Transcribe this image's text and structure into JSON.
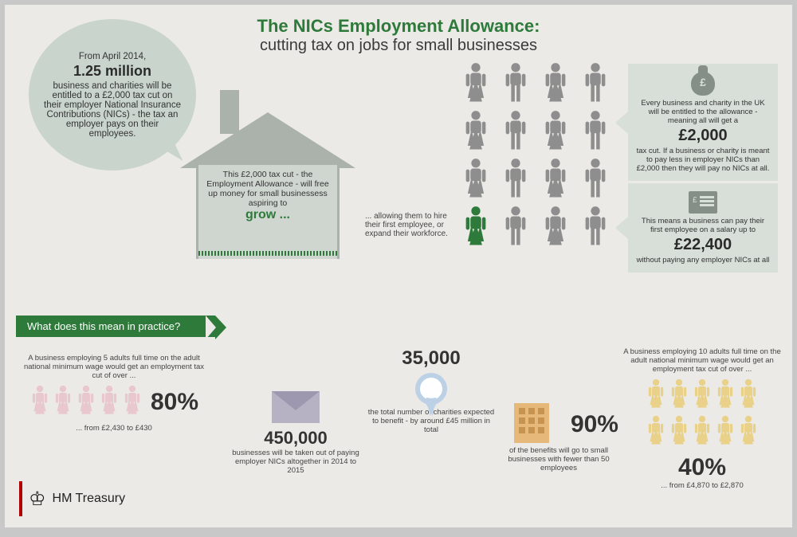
{
  "title": {
    "line1": "The NICs Employment Allowance:",
    "line2": "cutting tax on jobs for small businesses"
  },
  "bubble": {
    "intro": "From April 2014,",
    "big": "1.25 million",
    "rest": "business and charities will be entitled to a £2,000 tax cut on their employer National Insurance Contributions (NICs) - the tax an employer pays on their employees."
  },
  "house": {
    "text": "This £2,000 tax cut - the Employment Allowance - will free up money for small businessess aspiring to",
    "grow": "grow ..."
  },
  "allowing": "... allowing them to hire their first employee, or expand their workforce.",
  "people_grid": {
    "rows": 4,
    "cols": 4,
    "highlight_index": 12,
    "colors": {
      "normal": "#8e8e8e",
      "highlight": "#2e7a3a"
    }
  },
  "callout1": {
    "pre": "Every business and charity in the UK will be entitled to the allowance - meaning all will get a",
    "big": "£2,000",
    "post": "tax cut. If a business or charity is meant to pay less in employer NICs than £2,000 then they will pay no NICs at all."
  },
  "callout2": {
    "pre": "This means a business can pay their first employee on a salary up to",
    "big": "£22,400",
    "post": "without paying any employer NICs at all"
  },
  "banner": "What does this mean in practice?",
  "stat5": {
    "lead": "A business employing 5 adults full time on the adult national minimum wage would get an employment tax cut of over ...",
    "people_count": 5,
    "people_color": "#e9c7cf",
    "pct": "80%",
    "note": "... from £2,430 to £430"
  },
  "envelope": {
    "num": "450,000",
    "note": "businesses will be taken out of paying employer NICs altogether in 2014 to 2015"
  },
  "charities": {
    "num": "35,000",
    "note": "the total number of charities expected to benefit - by around £45 million in total"
  },
  "building": {
    "pct": "90%",
    "note": "of the benefits will go to small businesses with fewer than 50 employees"
  },
  "stat10": {
    "lead": "A business employing 10 adults full time on the adult national minimum wage would get an employment tax cut of over ...",
    "people_count": 10,
    "people_color": "#e9d18a",
    "pct": "40%",
    "note": "... from £4,870 to £2,870"
  },
  "logo": "HM Treasury",
  "theme": {
    "green": "#2e7a3a",
    "page_bg": "#ebeae6",
    "bubble_bg": "#c9d4cc",
    "callout_bg": "#d7dfd8",
    "text": "#333333"
  }
}
